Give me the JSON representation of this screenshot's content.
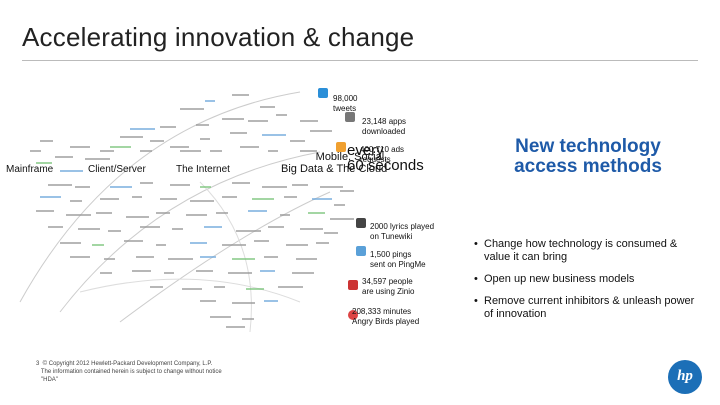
{
  "title": "Accelerating innovation & change",
  "eras": {
    "mainframe": "Mainframe",
    "client_server": "Client/Server",
    "internet": "The Internet",
    "mobile": "Mobile, Social,\nBig Data & The Cloud"
  },
  "stats": {
    "tweets": "98,000\ntweets",
    "apps": "23,148 apps\ndownloaded",
    "ads": "400,710 ads\nrequests",
    "every": "every\n60 seconds",
    "tunes": "2000 lyrics played\non Tunewiki",
    "pings": "1,500 pings\nsent on PingMe",
    "zinio": "34,597 people\nare using Zinio",
    "angry": "208,333 minutes\nAngry Birds played"
  },
  "heading": "New technology\naccess methods",
  "bullets": [
    "Change how technology is consumed & value it can bring",
    "Open up new business models",
    "Remove current inhibitors & unleash power of innovation"
  ],
  "footer": "3  © Copyright 2012 Hewlett-Packard Development Company, L.P.\n   The information contained herein is subject to change without notice\n   \"HDA\"",
  "logo_text": "hp",
  "colors": {
    "heading": "#1e5aa8",
    "accent_blue": "#1a7fc1",
    "accent_green": "#2a9a2a"
  }
}
